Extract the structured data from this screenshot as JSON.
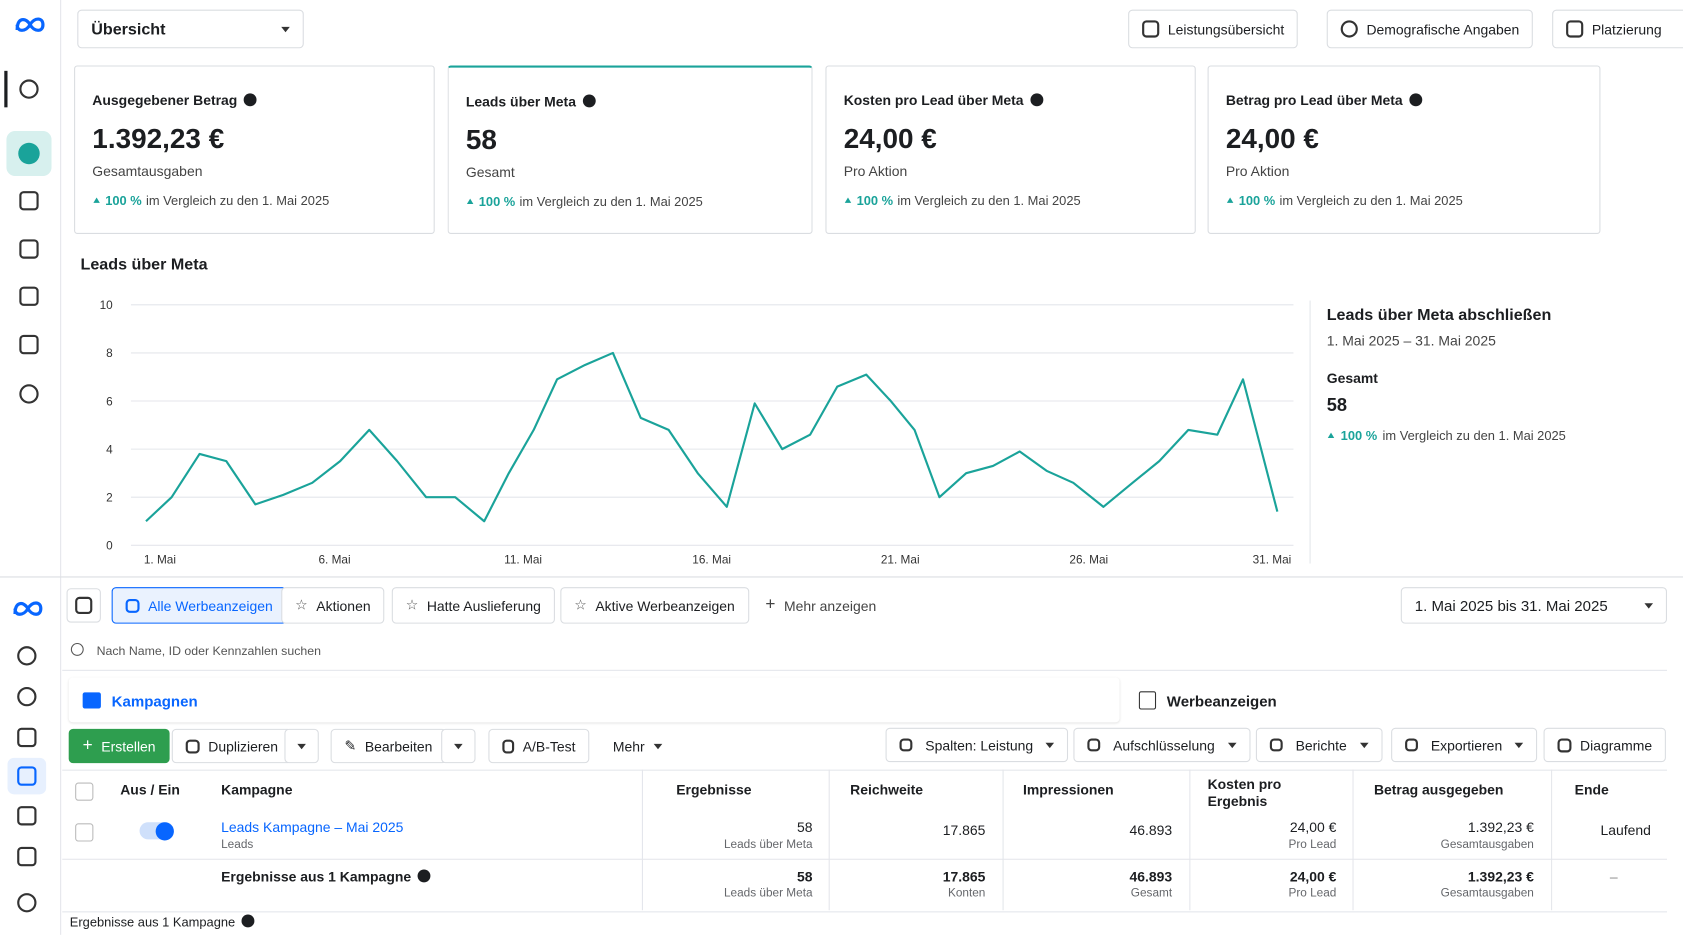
{
  "nav": {
    "view_select": "Übersicht"
  },
  "top_buttons": [
    "Leistungsübersicht",
    "Demografische Angaben",
    "Platzierung"
  ],
  "kpis": [
    {
      "label": "Ausgegebener Betrag",
      "value": "1.392,23 €",
      "sub": "Gesamtausgaben",
      "change": "100 %",
      "compare": "im Vergleich zu den 1. Mai 2025"
    },
    {
      "label": "Leads über Meta",
      "value": "58",
      "sub": "Gesamt",
      "change": "100 %",
      "compare": "im Vergleich zu den 1. Mai 2025"
    },
    {
      "label": "Kosten pro Lead über Meta",
      "value": "24,00 €",
      "sub": "Pro Aktion",
      "change": "100 %",
      "compare": "im Vergleich zu den 1. Mai 2025"
    },
    {
      "label": "Betrag pro Lead über Meta",
      "value": "24,00 €",
      "sub": "Pro Aktion",
      "change": "100 %",
      "compare": "im Vergleich zu den 1. Mai 2025"
    }
  ],
  "chart_data": {
    "type": "line",
    "title": "Leads über Meta",
    "x": [
      1.0,
      1.68,
      2.42,
      3.13,
      3.9,
      4.64,
      5.41,
      6.15,
      6.92,
      7.66,
      8.43,
      9.2,
      9.97,
      10.62,
      11.28,
      11.9,
      12.64,
      13.38,
      14.12,
      14.86,
      15.63,
      16.4,
      17.14,
      17.87,
      18.61,
      19.33,
      20.1,
      20.75,
      21.38,
      22.04,
      22.75,
      23.46,
      24.17,
      24.88,
      25.59,
      26.39,
      27.16,
      27.87,
      28.64,
      29.41,
      30.09,
      31.0
    ],
    "values": [
      1.0,
      2.0,
      3.8,
      3.5,
      1.7,
      2.1,
      2.6,
      3.5,
      4.8,
      3.5,
      2.0,
      2.0,
      1.0,
      3.0,
      4.8,
      6.9,
      7.5,
      8.0,
      5.3,
      4.8,
      3.0,
      1.6,
      5.9,
      4.0,
      4.6,
      6.6,
      7.1,
      6.0,
      4.8,
      2.0,
      3.0,
      3.3,
      3.9,
      3.1,
      2.6,
      1.6,
      2.6,
      3.5,
      4.8,
      4.6,
      6.9,
      1.4
    ],
    "color": "#1aa39a",
    "xlim": [
      1,
      31
    ],
    "xticks": [
      {
        "value": 1,
        "label": "1. Mai"
      },
      {
        "value": 6,
        "label": "6. Mai"
      },
      {
        "value": 11,
        "label": "11. Mai"
      },
      {
        "value": 16,
        "label": "16. Mai"
      },
      {
        "value": 21,
        "label": "21. Mai"
      },
      {
        "value": 26,
        "label": "26. Mai"
      },
      {
        "value": 31,
        "label": "31. Mai"
      }
    ],
    "ylim": [
      0,
      10
    ],
    "yticks": [
      0,
      2,
      4,
      6,
      8,
      10
    ],
    "grid": true
  },
  "summary": {
    "title": "Leads über Meta abschließen",
    "range": "1. Mai 2025 – 31. Mai 2025",
    "total_label": "Gesamt",
    "total": "58",
    "change": "100 %",
    "compare": "im Vergleich zu den 1. Mai 2025"
  },
  "filters": {
    "tabs": [
      "Alle Werbeanzeigen",
      "Aktionen",
      "Hatte Auslieferung",
      "Aktive Werbeanzeigen",
      "Mehr anzeigen"
    ],
    "date_range": "1. Mai 2025 bis 31. Mai 2025",
    "search_placeholder": "Nach Name, ID oder Kennzahlen suchen"
  },
  "levels": [
    "Kampagnen",
    "Werbeanzeigen"
  ],
  "actions": {
    "left": [
      "Erstellen",
      "Duplizieren",
      "Bearbeiten",
      "A/B-Test",
      "Mehr"
    ],
    "right": [
      "Spalten: Leistung",
      "Aufschlüsselung",
      "Berichte",
      "Exportieren",
      "Diagramme"
    ]
  },
  "table": {
    "columns": [
      "Aus / Ein",
      "Kampagne",
      "Ergebnisse",
      "Reichweite",
      "Impressionen",
      "Kosten pro Ergebnis",
      "Betrag ausgegeben",
      "Ende"
    ],
    "rows": [
      {
        "name": "Leads Kampagne – Mai 2025",
        "objective": "Leads",
        "results": "58",
        "results_sub": "Leads über Meta",
        "reach": "17.865",
        "impressions": "46.893",
        "cost": "24,00 €",
        "cost_sub": "Pro Lead",
        "spent": "1.392,23 €",
        "spent_sub": "Gesamtausgaben",
        "end": "Laufend"
      }
    ],
    "total": {
      "label": "Ergebnisse aus 1 Kampagne",
      "results": "58",
      "results_sub": "Leads über Meta",
      "reach": "17.865",
      "reach_sub": "Konten",
      "impressions": "46.893",
      "impressions_sub": "Gesamt",
      "cost": "24,00 €",
      "cost_sub": "Pro Lead",
      "spent": "1.392,23 €",
      "spent_sub": "Gesamtausgaben",
      "end": "–"
    }
  },
  "footer": "Ergebnisse aus 1 Kampagne"
}
